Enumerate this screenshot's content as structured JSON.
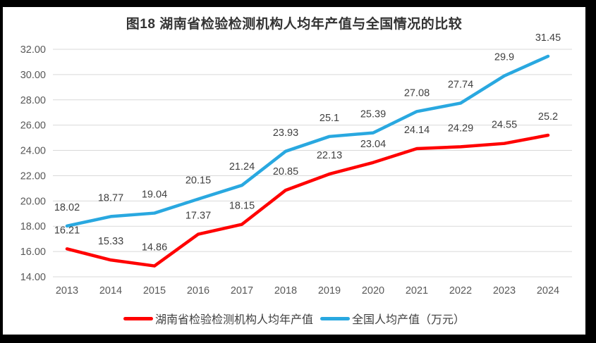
{
  "chart_data": {
    "type": "line",
    "title": "图18 湖南省检验检测机构人均年产值与全国情况的比较",
    "categories": [
      "2013",
      "2014",
      "2015",
      "2016",
      "2017",
      "2018",
      "2019",
      "2020",
      "2021",
      "2022",
      "2023",
      "2024"
    ],
    "series": [
      {
        "name": "湖南省检验检测机构人均年产值",
        "color": "#FF0000",
        "values": [
          16.21,
          15.33,
          14.86,
          17.37,
          18.15,
          20.85,
          22.13,
          23.04,
          24.14,
          24.29,
          24.55,
          25.2
        ],
        "labels": [
          "16.21",
          "15.33",
          "14.86",
          "17.37",
          "18.15",
          "20.85",
          "22.13",
          "23.04",
          "24.14",
          "24.29",
          "24.55",
          "25.2"
        ]
      },
      {
        "name": "全国人均产值（万元）",
        "color": "#29A8E0",
        "values": [
          18.02,
          18.77,
          19.04,
          20.15,
          21.24,
          23.93,
          25.1,
          25.39,
          27.08,
          27.74,
          29.9,
          31.45
        ],
        "labels": [
          "18.02",
          "18.77",
          "19.04",
          "20.15",
          "21.24",
          "23.93",
          "25.1",
          "25.39",
          "27.08",
          "27.74",
          "29.9",
          "31.45"
        ]
      }
    ],
    "y_ticks": [
      {
        "value": 32,
        "label": "32.00"
      },
      {
        "value": 30,
        "label": "30.00"
      },
      {
        "value": 28,
        "label": "28.00"
      },
      {
        "value": 26,
        "label": "26.00"
      },
      {
        "value": 24,
        "label": "24.00"
      },
      {
        "value": 22,
        "label": "22.00"
      },
      {
        "value": 20,
        "label": "20.00"
      },
      {
        "value": 18,
        "label": "18.00"
      },
      {
        "value": 16,
        "label": "16.00"
      },
      {
        "value": 14,
        "label": "14.00"
      }
    ],
    "ylim": [
      14,
      32
    ],
    "grid": true,
    "legend_position": "bottom",
    "colors": {
      "gridline": "#D9D9D9",
      "axis_text": "#595959",
      "data_label_text": "#404040",
      "title_text": "#333333",
      "frame": "#000000",
      "background": "#FFFFFF"
    }
  }
}
